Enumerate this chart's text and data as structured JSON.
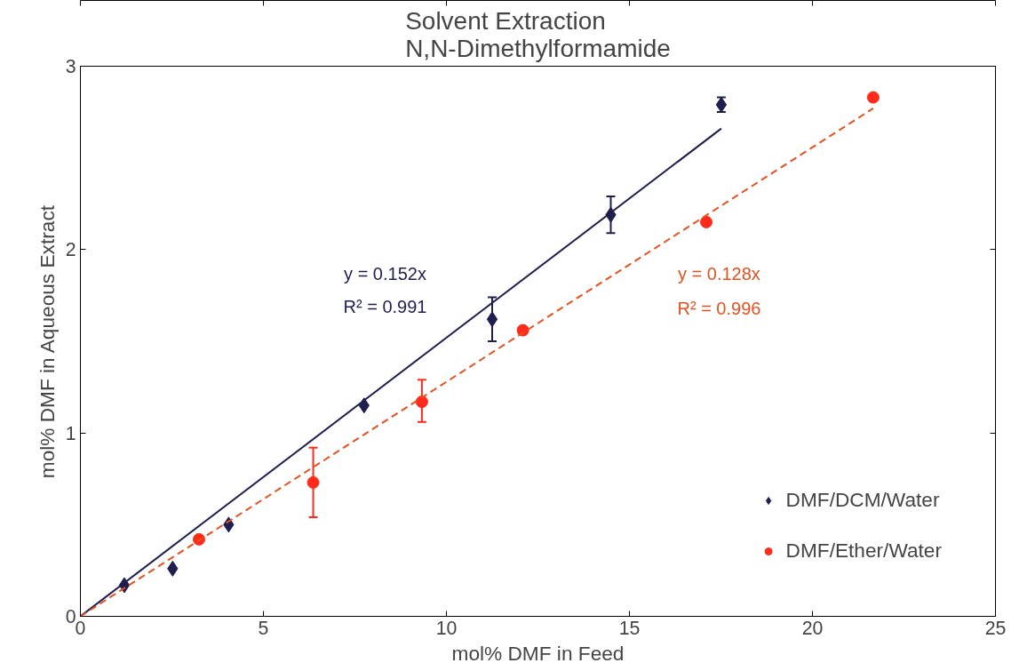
{
  "chart_data": {
    "type": "scatter",
    "title": "Solvent Extraction\nN,N-Dimethylformamide",
    "xlabel": "mol% DMF in Feed",
    "ylabel": "mol% DMF in Aqueous Extract",
    "xlim": [
      0,
      25
    ],
    "xticks": [
      0,
      5,
      10,
      15,
      20,
      25
    ],
    "ylim": [
      0,
      3
    ],
    "yticks": [
      0,
      1,
      2,
      3
    ],
    "grid": false,
    "legend": "bottom right",
    "series": [
      {
        "name": "DMF/DCM/Water",
        "marker": "diamond",
        "color": "#1f1f4f",
        "x": [
          1.2,
          2.52,
          4.05,
          7.75,
          11.25,
          14.49,
          17.51
        ],
        "values": [
          0.17,
          0.26,
          0.5,
          1.15,
          1.62,
          2.19,
          2.79
        ],
        "errors": [
          null,
          null,
          null,
          null,
          [
            1.5,
            1.74
          ],
          [
            2.09,
            2.29
          ],
          [
            2.75,
            2.83
          ]
        ]
      },
      {
        "name": "DMF/Ether/Water",
        "marker": "circle",
        "color": "#ff2a1a",
        "x": [
          3.24,
          6.36,
          9.33,
          12.09,
          17.1,
          21.66
        ],
        "values": [
          0.42,
          0.73,
          1.17,
          1.56,
          2.15,
          2.83
        ],
        "errors": [
          null,
          [
            0.54,
            0.92
          ],
          [
            1.06,
            1.29
          ],
          null,
          null,
          null
        ]
      },
      {
        "type": "line",
        "line_style": "solid",
        "color": "#1f1f4f",
        "x": [
          0,
          17.51
        ],
        "values": [
          0,
          2.66
        ]
      },
      {
        "type": "line",
        "line_style": "dashed",
        "color": "#e8501e",
        "x": [
          0,
          21.66
        ],
        "values": [
          0,
          2.77
        ]
      }
    ],
    "annotations": [
      "y = 0.152x",
      "R² = 0.991",
      "y = 0.128x",
      "R² = 0.996"
    ]
  }
}
